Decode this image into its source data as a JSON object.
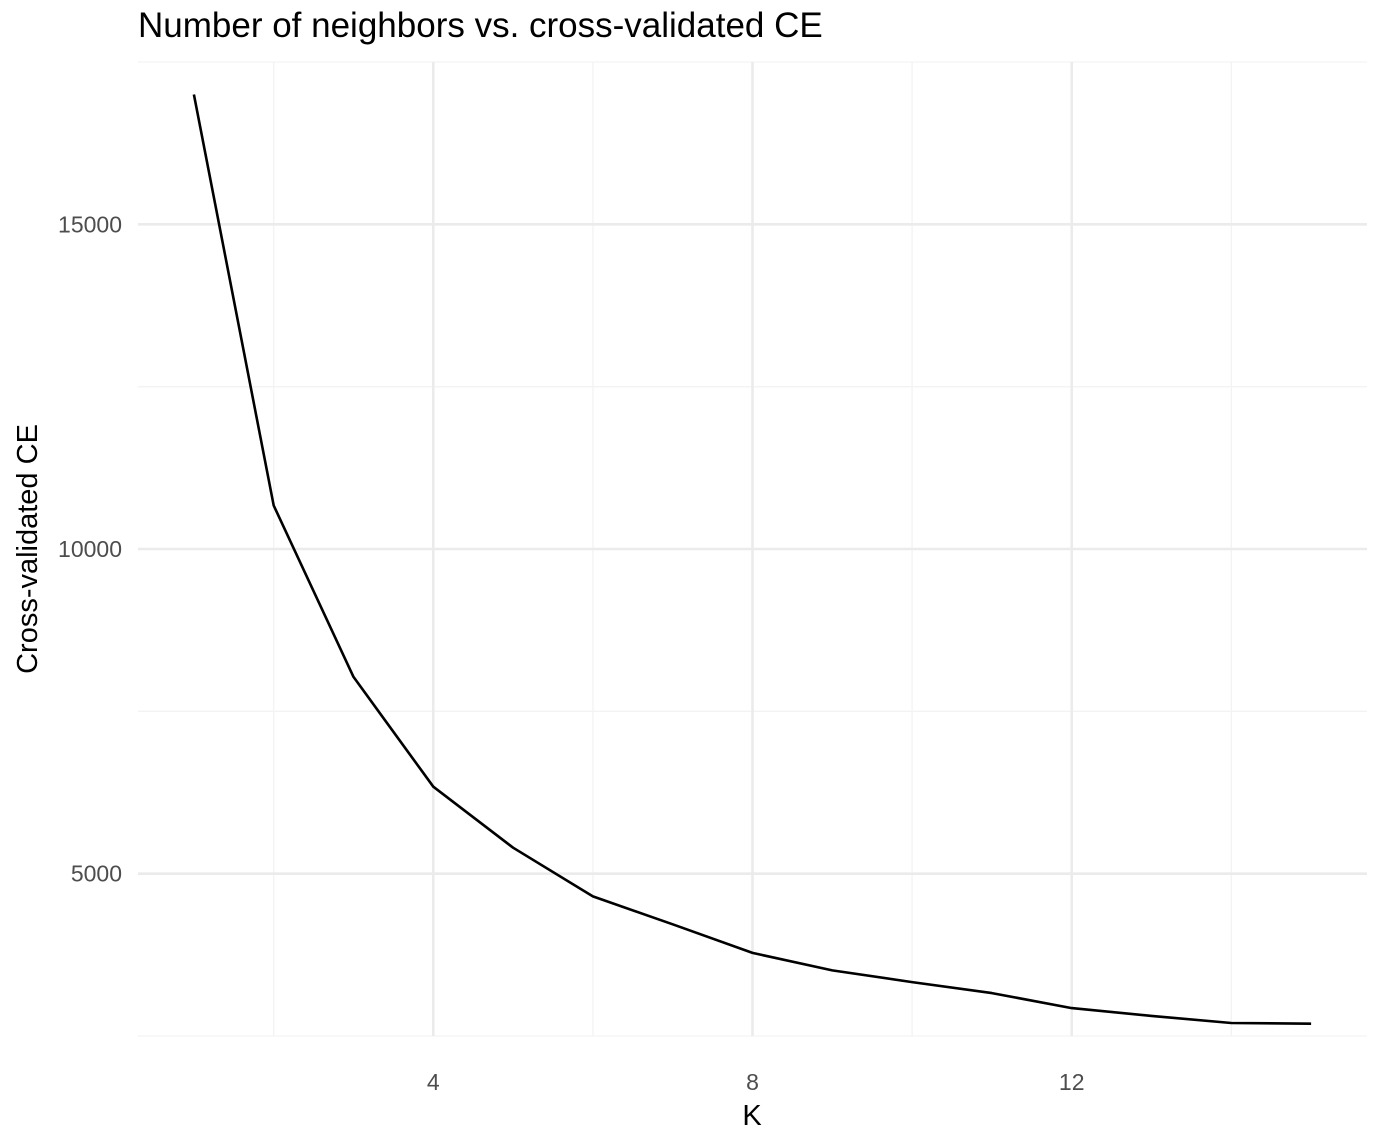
{
  "chart_data": {
    "type": "line",
    "title": "Number of neighbors vs. cross-validated CE",
    "xlabel": "K",
    "ylabel": "Cross-validated CE",
    "x": [
      1,
      2,
      3,
      4,
      5,
      6,
      7,
      8,
      9,
      10,
      11,
      12,
      13,
      14,
      15
    ],
    "series": [
      {
        "values": [
          17000,
          10670,
          8030,
          6340,
          5400,
          4650,
          4220,
          3780,
          3510,
          3330,
          3160,
          2930,
          2810,
          2700,
          2690
        ]
      }
    ],
    "xlim": [
      0.3,
      15.7
    ],
    "ylim": [
      2500,
      17500
    ],
    "x_major_ticks": [
      4,
      8,
      12
    ],
    "x_minor_ticks": [
      2,
      6,
      10,
      14
    ],
    "y_major_ticks": [
      5000,
      10000,
      15000
    ],
    "y_minor_ticks": [
      2500,
      7500,
      12500,
      17500
    ],
    "x_tick_labels": [
      "4",
      "8",
      "12"
    ],
    "y_tick_labels": [
      "5000",
      "10000",
      "15000"
    ],
    "grid": true,
    "legend": "none",
    "colors": {
      "line": "#000000",
      "grid_major": "#ebebeb",
      "grid_minor": "#f3f3f3",
      "tick_text": "#4d4d4d",
      "background": "#ffffff"
    }
  }
}
